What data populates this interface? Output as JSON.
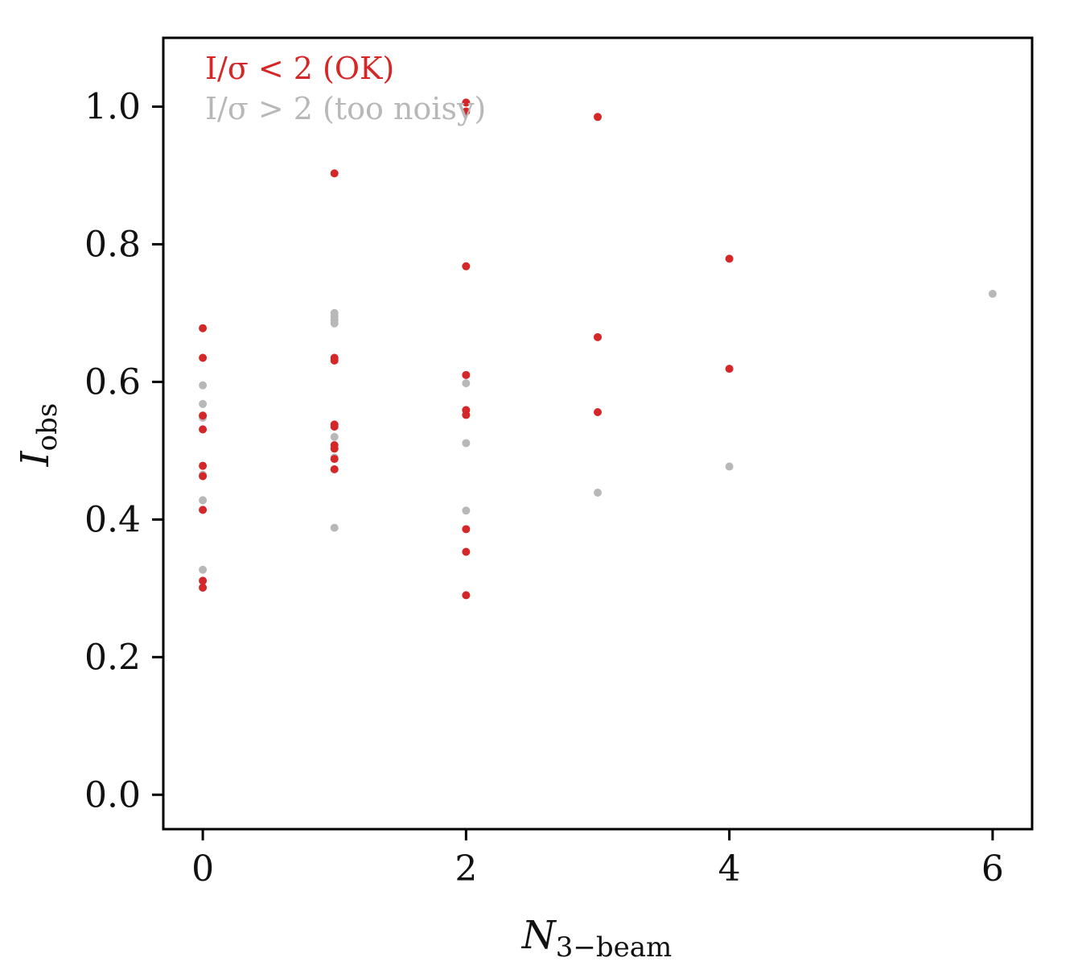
{
  "chart_data": {
    "type": "scatter",
    "title": "",
    "xlabel": {
      "main": "N",
      "sub": "3−beam"
    },
    "ylabel": {
      "main": "I",
      "sub": "obs"
    },
    "xlim": [
      -0.3,
      6.3
    ],
    "ylim": [
      -0.05,
      1.1
    ],
    "xticks": [
      0,
      2,
      4,
      6
    ],
    "yticks": [
      0.0,
      0.2,
      0.4,
      0.6,
      0.8,
      1.0
    ],
    "xtick_labels": [
      "0",
      "2",
      "4",
      "6"
    ],
    "ytick_labels": [
      "0.0",
      "0.2",
      "0.4",
      "0.6",
      "0.8",
      "1.0"
    ],
    "grid": false,
    "legend": "top-left",
    "series": [
      {
        "name": "I/σ > 2 (too noisy)",
        "color": "#b8b8b8",
        "points": [
          [
            0,
            0.595
          ],
          [
            0,
            0.568
          ],
          [
            0,
            0.548
          ],
          [
            0,
            0.465
          ],
          [
            0,
            0.428
          ],
          [
            0,
            0.327
          ],
          [
            1,
            0.7
          ],
          [
            1,
            0.695
          ],
          [
            1,
            0.69
          ],
          [
            1,
            0.685
          ],
          [
            1,
            0.52
          ],
          [
            1,
            0.49
          ],
          [
            1,
            0.388
          ],
          [
            2,
            0.598
          ],
          [
            2,
            0.511
          ],
          [
            2,
            0.413
          ],
          [
            3,
            0.439
          ],
          [
            4,
            0.477
          ],
          [
            6,
            0.728
          ]
        ]
      },
      {
        "name": "I/σ < 2 (OK)",
        "color": "#d62728",
        "points": [
          [
            0,
            0.678
          ],
          [
            0,
            0.635
          ],
          [
            0,
            0.551
          ],
          [
            0,
            0.531
          ],
          [
            0,
            0.478
          ],
          [
            0,
            0.463
          ],
          [
            0,
            0.414
          ],
          [
            0,
            0.311
          ],
          [
            0,
            0.301
          ],
          [
            1,
            0.903
          ],
          [
            1,
            0.635
          ],
          [
            1,
            0.631
          ],
          [
            1,
            0.538
          ],
          [
            1,
            0.535
          ],
          [
            1,
            0.508
          ],
          [
            1,
            0.503
          ],
          [
            1,
            0.488
          ],
          [
            1,
            0.473
          ],
          [
            2,
            1.006
          ],
          [
            2,
            0.993
          ],
          [
            2,
            0.768
          ],
          [
            2,
            0.61
          ],
          [
            2,
            0.559
          ],
          [
            2,
            0.552
          ],
          [
            2,
            0.386
          ],
          [
            2,
            0.353
          ],
          [
            2,
            0.29
          ],
          [
            3,
            0.985
          ],
          [
            3,
            0.665
          ],
          [
            3,
            0.556
          ],
          [
            4,
            0.779
          ],
          [
            4,
            0.619
          ]
        ]
      }
    ]
  }
}
